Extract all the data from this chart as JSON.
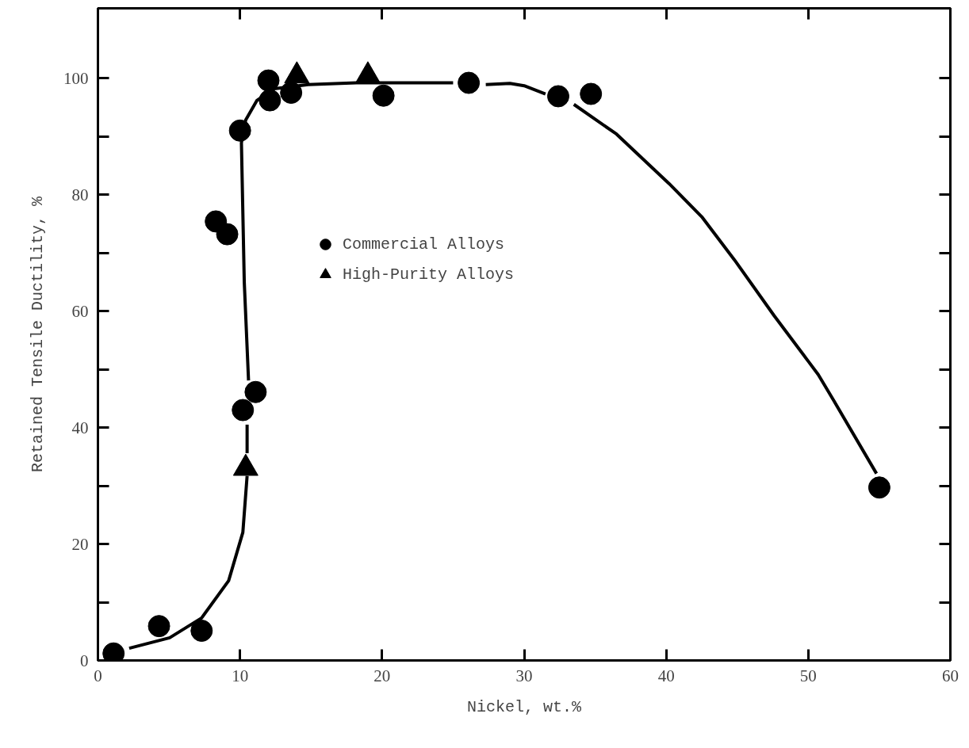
{
  "chart_data": {
    "type": "scatter",
    "xlabel": "Nickel, wt.%",
    "ylabel": "Retained Tensile Ductility, %",
    "xlim": [
      0,
      60
    ],
    "ylim": [
      0,
      112
    ],
    "xticks": [
      0,
      10,
      20,
      30,
      40,
      50,
      60
    ],
    "yticks": [
      0,
      {
        "value": 10,
        "label": null
      },
      20,
      {
        "value": 30,
        "label": null
      },
      40,
      {
        "value": 50,
        "label": null
      },
      60,
      {
        "value": 70,
        "label": null
      },
      80,
      {
        "value": 90,
        "label": null
      },
      100
    ],
    "legend": "top left",
    "grid": false,
    "series": [
      {
        "name": "Commercial Alloys",
        "marker": "circle",
        "color": "#000000",
        "x": [
          1.1,
          4.3,
          7.3,
          8.3,
          9.1,
          10.0,
          10.2,
          11.1,
          12.0,
          12.1,
          13.6,
          20.1,
          26.1,
          32.4,
          34.7,
          55.0
        ],
        "values": [
          1.2,
          5.9,
          5.1,
          75.4,
          73.2,
          91.0,
          43.0,
          46.1,
          99.6,
          96.2,
          97.5,
          97.0,
          99.2,
          96.9,
          97.3,
          29.7
        ]
      },
      {
        "name": "High-Purity Alloys",
        "marker": "triangle",
        "color": "#000000",
        "x": [
          10.4,
          14.0,
          19.0
        ],
        "values": [
          33.0,
          100.4,
          100.4
        ]
      },
      {
        "type": "line",
        "line_style": "solid",
        "color": "#000000",
        "x": [
          2.2,
          5.05,
          7.3,
          9.2,
          10.2,
          10.5
        ],
        "values": [
          2.1,
          3.9,
          7.3,
          13.7,
          22.0,
          31.7
        ]
      },
      {
        "type": "line",
        "line_style": "solid",
        "color": "#000000",
        "x": [
          10.5,
          10.5
        ],
        "values": [
          35.6,
          40.5
        ]
      },
      {
        "type": "line",
        "line_style": "solid",
        "color": "#000000",
        "x": [
          10.6,
          10.3,
          10.1,
          10.4,
          11.2,
          12.4,
          14.8,
          18.2,
          20.6,
          25.0
        ],
        "values": [
          48.1,
          65.0,
          88.9,
          92.8,
          96.2,
          98.2,
          98.9,
          99.2,
          99.2,
          99.2
        ]
      },
      {
        "type": "line",
        "line_style": "solid",
        "color": "#000000",
        "x": [
          27.3,
          29.0,
          30.0,
          31.5
        ],
        "values": [
          98.9,
          99.1,
          98.7,
          97.3
        ]
      },
      {
        "type": "line",
        "line_style": "solid",
        "color": "#000000",
        "x": [
          33.5,
          36.5,
          40.2,
          42.5,
          44.8,
          47.6,
          50.7,
          51.8,
          54.8
        ],
        "values": [
          95.5,
          90.4,
          81.9,
          76.2,
          68.8,
          59.2,
          49.1,
          44.6,
          32.1
        ]
      }
    ]
  }
}
